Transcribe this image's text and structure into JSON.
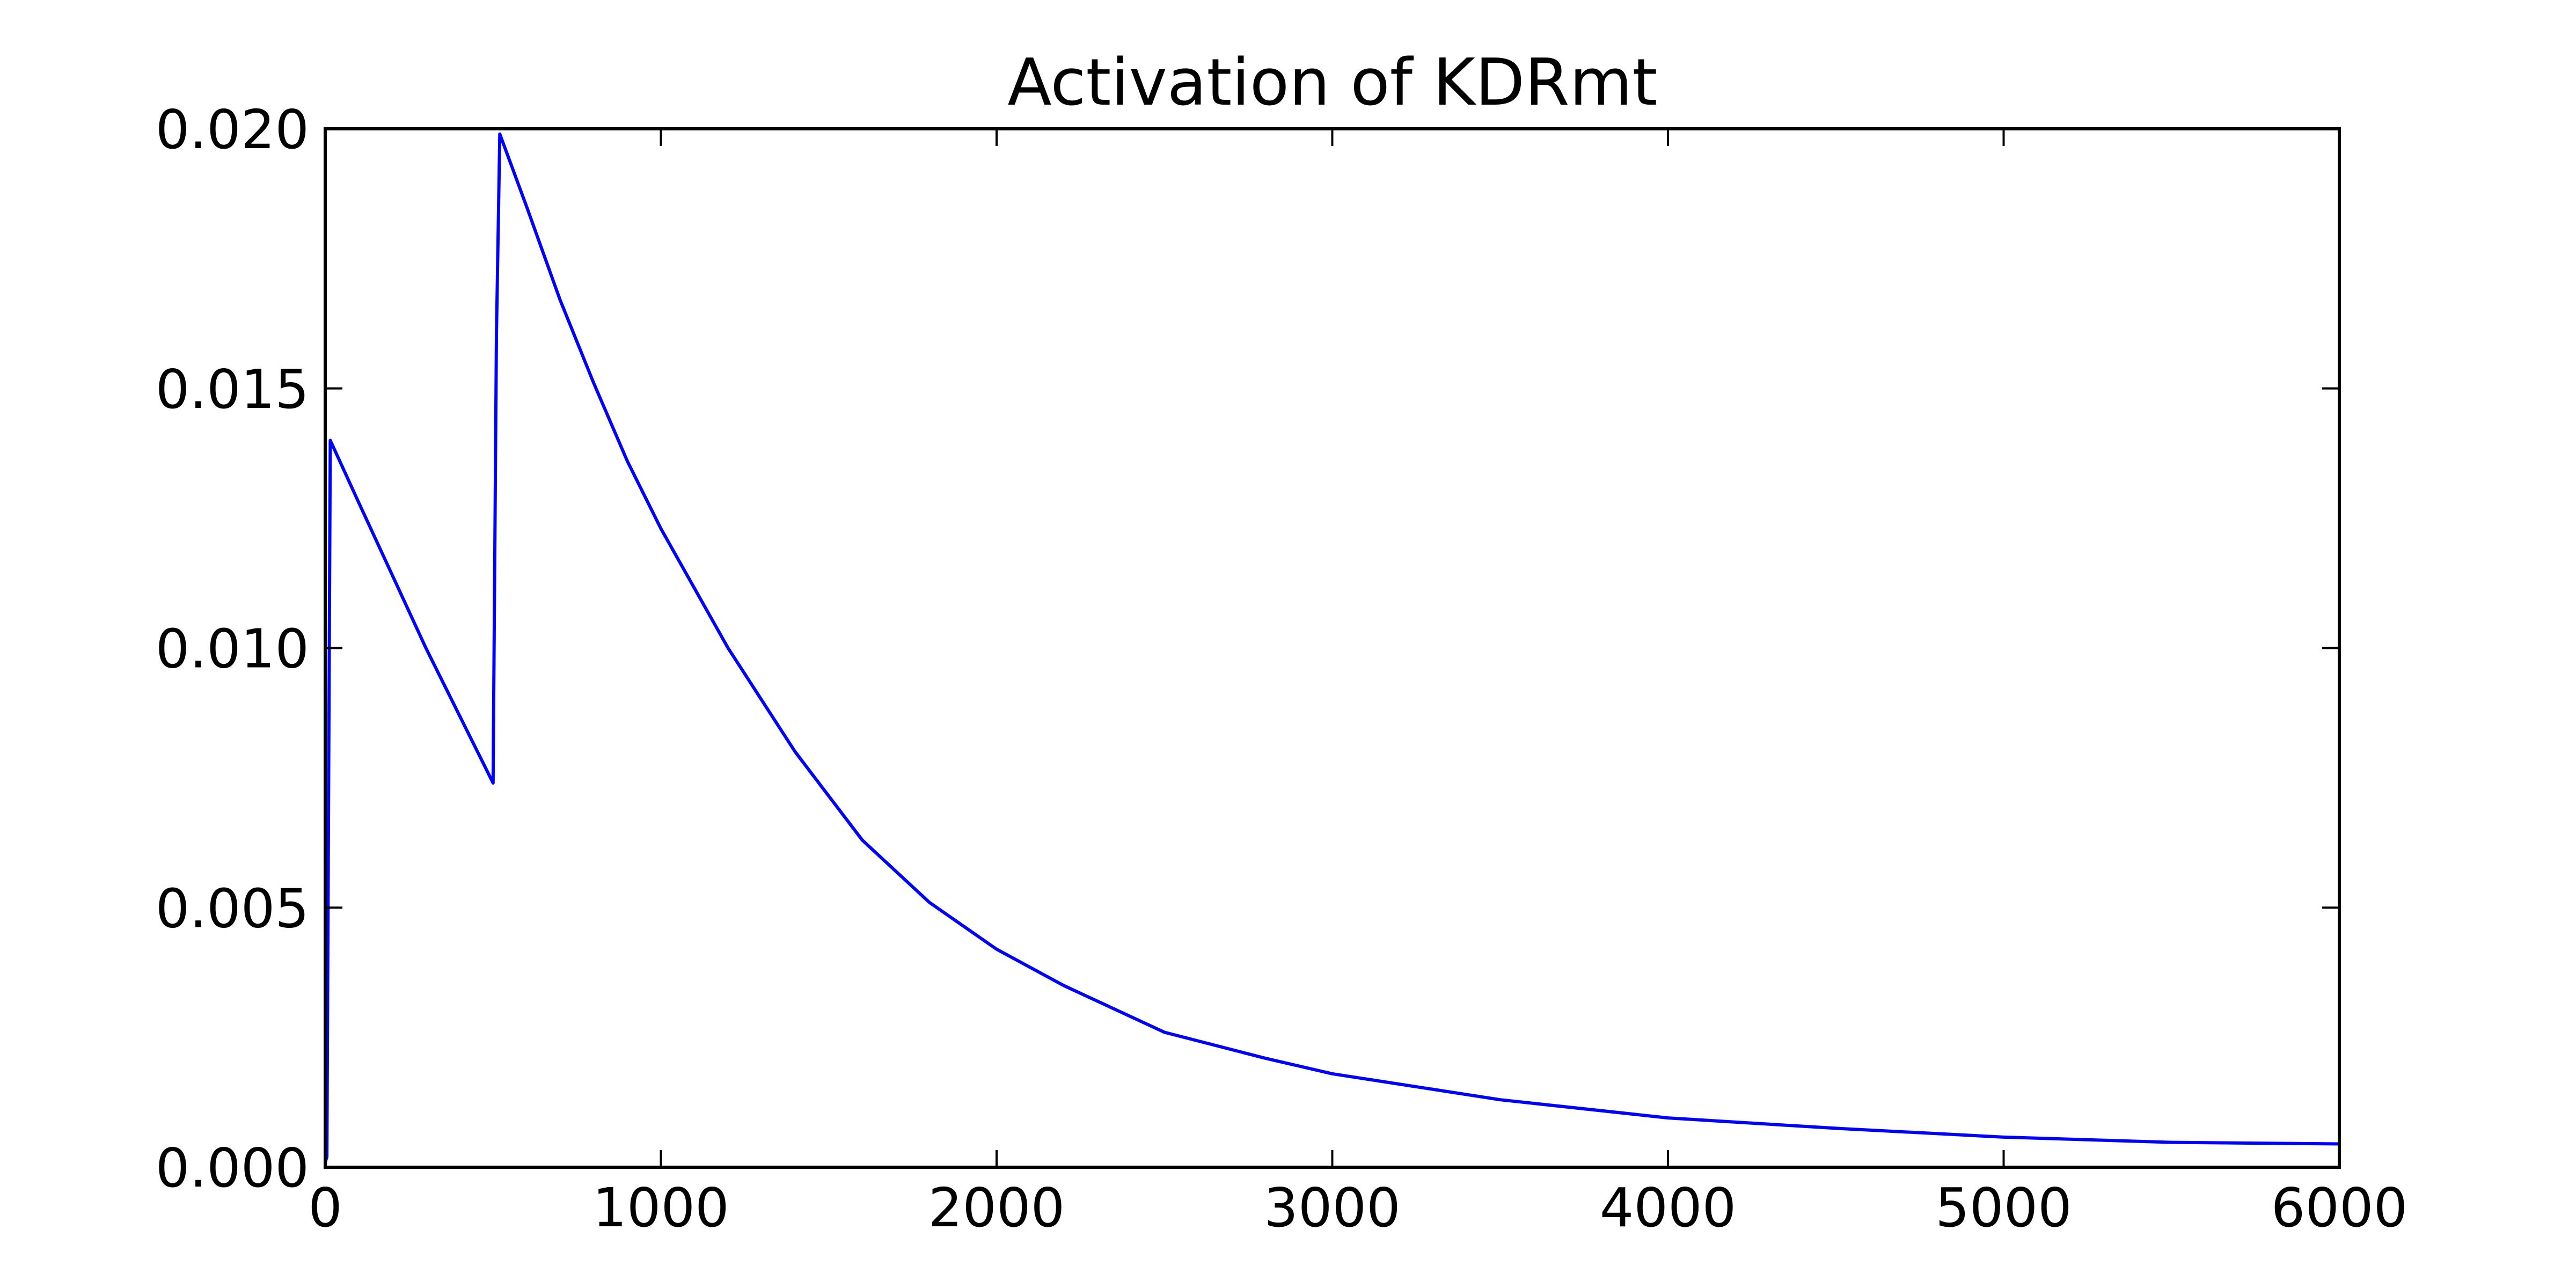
{
  "chart_data": {
    "type": "line",
    "title": "Activation of KDRmt",
    "xlabel": "",
    "ylabel": "",
    "xlim": [
      0,
      6000
    ],
    "ylim": [
      0,
      0.02
    ],
    "grid": false,
    "x_ticks": [
      0,
      1000,
      2000,
      3000,
      4000,
      5000,
      6000
    ],
    "x_tick_labels": [
      "0",
      "1000",
      "2000",
      "3000",
      "4000",
      "5000",
      "6000"
    ],
    "y_ticks": [
      0,
      0.005,
      0.01,
      0.015,
      0.02
    ],
    "y_tick_labels": [
      "0.000",
      "0.005",
      "0.010",
      "0.015",
      "0.020"
    ],
    "series": [
      {
        "color": "#0000ff",
        "x": [
          0,
          5,
          15,
          100,
          200,
          300,
          400,
          500,
          510,
          520,
          600,
          700,
          800,
          900,
          1000,
          1200,
          1400,
          1600,
          1800,
          2000,
          2200,
          2500,
          2800,
          3000,
          3500,
          4000,
          4500,
          5000,
          5500,
          6000
        ],
        "y": [
          0.0001,
          0.0002,
          0.014,
          0.0128,
          0.0114,
          0.01,
          0.0087,
          0.0074,
          0.016,
          0.0199,
          0.0185,
          0.0167,
          0.0151,
          0.0136,
          0.0123,
          0.01,
          0.008,
          0.0063,
          0.0051,
          0.0042,
          0.0035,
          0.0026,
          0.0021,
          0.0018,
          0.0013,
          0.00095,
          0.00075,
          0.00058,
          0.00048,
          0.00045
        ]
      }
    ]
  }
}
